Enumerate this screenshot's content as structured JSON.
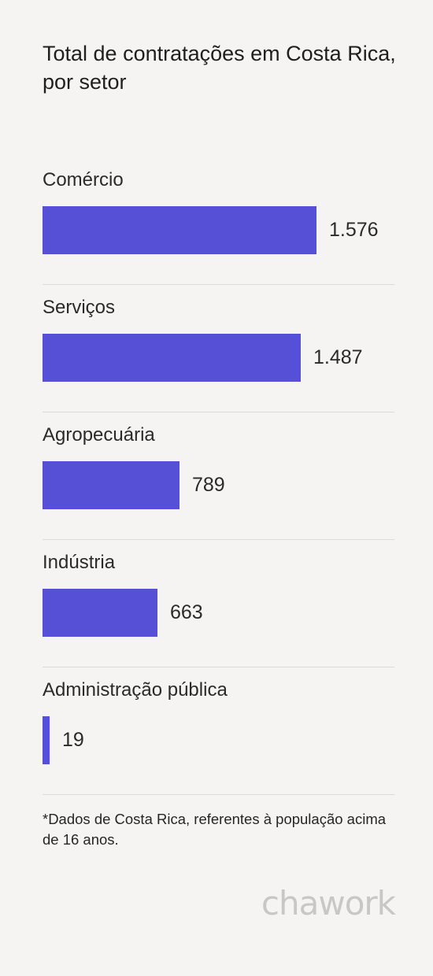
{
  "title": "Total de contratações em Costa Rica, por setor",
  "chart_data": {
    "type": "bar",
    "orientation": "horizontal",
    "title": "Total de contratações em Costa Rica, por setor",
    "categories": [
      "Comércio",
      "Serviços",
      "Agropecuária",
      "Indústria",
      "Administração pública"
    ],
    "values": [
      1576,
      1487,
      789,
      663,
      19
    ],
    "value_labels": [
      "1.576",
      "1.487",
      "789",
      "663",
      "19"
    ],
    "bar_color": "#5650d7",
    "xlim": [
      0,
      1576
    ],
    "grid": false,
    "legend": "none"
  },
  "footnote": "*Dados de Costa Rica, referentes à população acima de 16 anos.",
  "logo": "chawork"
}
